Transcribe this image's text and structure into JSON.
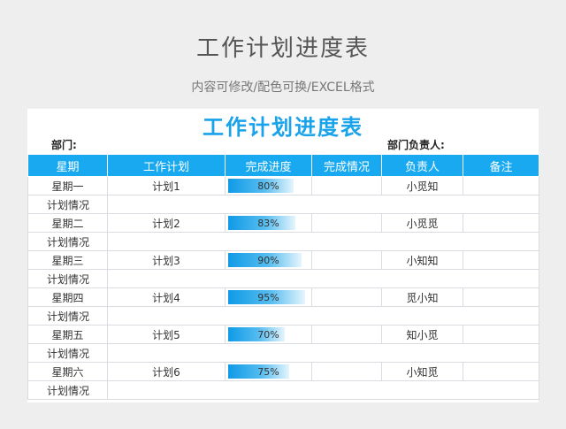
{
  "header": {
    "title": "工作计划进度表",
    "subtitle": "内容可修改/配色可换/EXCEL格式"
  },
  "sheet": {
    "title": "工作计划进度表",
    "dept_label": "部门:",
    "owner_label": "部门负责人:",
    "columns": [
      "星期",
      "工作计划",
      "完成进度",
      "完成情况",
      "负责人",
      "备注"
    ],
    "sub_row_label": "计划情况",
    "rows": [
      {
        "day": "星期一",
        "plan": "计划1",
        "progress_text": "80%",
        "progress": 0.8,
        "person": "小觅知",
        "note": ""
      },
      {
        "day": "星期二",
        "plan": "计划2",
        "progress_text": "83%",
        "progress": 0.83,
        "person": "小觅觅",
        "note": ""
      },
      {
        "day": "星期三",
        "plan": "计划3",
        "progress_text": "90%",
        "progress": 0.9,
        "person": "小知知",
        "note": ""
      },
      {
        "day": "星期四",
        "plan": "计划4",
        "progress_text": "95%",
        "progress": 0.95,
        "person": "觅小知",
        "note": ""
      },
      {
        "day": "星期五",
        "plan": "计划5",
        "progress_text": "70%",
        "progress": 0.7,
        "person": "知小觅",
        "note": ""
      },
      {
        "day": "星期六",
        "plan": "计划6",
        "progress_text": "75%",
        "progress": 0.75,
        "person": "小知觅",
        "note": ""
      }
    ]
  },
  "colors": {
    "accent": "#18a9f0",
    "title_blue": "#18a3ea",
    "background": "#eeeeee"
  }
}
